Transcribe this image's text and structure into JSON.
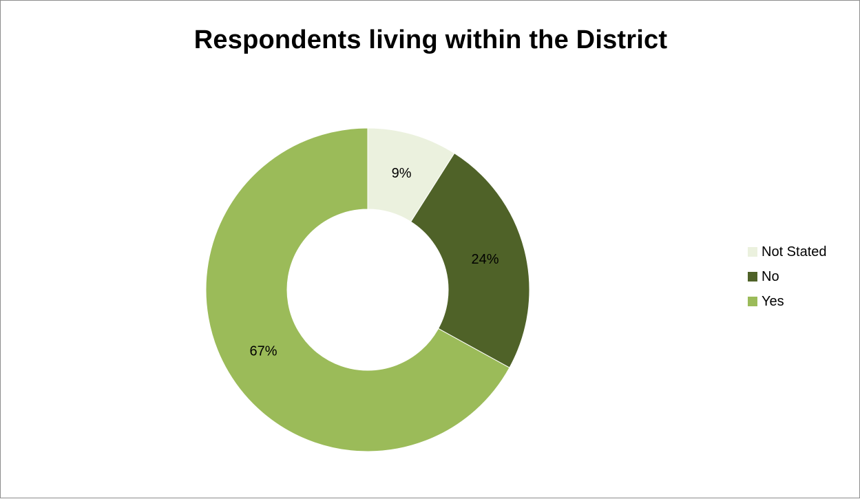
{
  "chart_data": {
    "type": "pie",
    "variant": "donut",
    "title": "Respondents living within the District",
    "categories": [
      "Not Stated",
      "No",
      "Yes"
    ],
    "values": [
      9,
      24,
      67
    ],
    "labels": [
      "9%",
      "24%",
      "67%"
    ],
    "colors": [
      "#EBF1DE",
      "#4F6228",
      "#9BBB59"
    ],
    "legend_position": "right"
  }
}
